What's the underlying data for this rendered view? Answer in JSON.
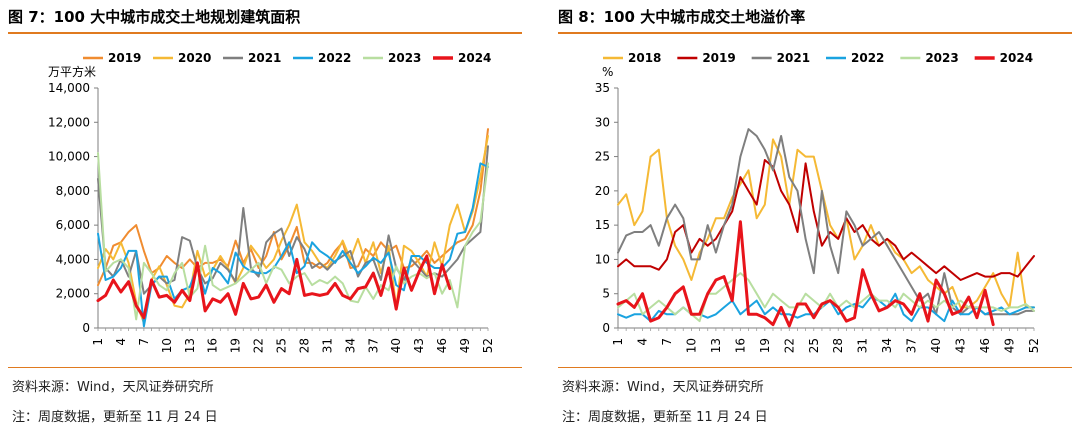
{
  "panels": [
    {
      "title": "图 7：100 大中城市成交土地规划建筑面积",
      "source": "资料来源：Wind，天风证券研究所",
      "note": "注：周度数据，更新至 11 月 24 日"
    },
    {
      "title": "图 8：100 大中城市成交土地溢价率",
      "source": "资料来源：Wind，天风证券研究所",
      "note": "注：周度数据，更新至 11 月 24 日"
    }
  ],
  "chart_data": [
    {
      "type": "line",
      "ylabel": "万平方米",
      "ylim": [
        0,
        14000
      ],
      "yticks": [
        0,
        2000,
        4000,
        6000,
        8000,
        10000,
        12000,
        14000
      ],
      "ytick_labels": [
        "0",
        "2,000",
        "4,000",
        "6,000",
        "8,000",
        "10,000",
        "12,000",
        "14,000"
      ],
      "xlim": [
        1,
        52
      ],
      "xticks": [
        1,
        4,
        7,
        10,
        13,
        16,
        19,
        22,
        25,
        28,
        31,
        34,
        37,
        40,
        43,
        46,
        49,
        52
      ],
      "grid": false,
      "legend": "top",
      "series": [
        {
          "name": "2019",
          "color": "#f08c30",
          "width": 2,
          "values": [
            2500,
            3500,
            4800,
            5000,
            5600,
            6000,
            4500,
            3200,
            3500,
            4200,
            3800,
            3500,
            4000,
            3500,
            3800,
            3800,
            4000,
            3600,
            5100,
            3800,
            4600,
            3500,
            4200,
            5600,
            4000,
            4800,
            5900,
            3800,
            3800,
            3500,
            3800,
            4500,
            5000,
            3500,
            3600,
            4600,
            4200,
            5000,
            4500,
            4800,
            3500,
            3600,
            4000,
            4500,
            3800,
            4200,
            4600,
            5000,
            5200,
            6000,
            8000,
            11600
          ]
        },
        {
          "name": "2020",
          "color": "#f5b935",
          "width": 2,
          "values": [
            3500,
            4600,
            4000,
            5000,
            3800,
            1500,
            300,
            2800,
            3600,
            2500,
            1300,
            1200,
            2000,
            4500,
            3000,
            3400,
            4200,
            3500,
            2600,
            3500,
            4800,
            4200,
            3500,
            4000,
            5100,
            6000,
            7200,
            5000,
            4500,
            3800,
            3500,
            4200,
            5100,
            4000,
            5200,
            3800,
            5000,
            3200,
            4800,
            1200,
            4800,
            4500,
            3800,
            3000,
            5000,
            3600,
            6000,
            7200,
            5600,
            6800,
            8800,
            11200
          ]
        },
        {
          "name": "2021",
          "color": "#7f7f7f",
          "width": 2,
          "values": [
            8700,
            3500,
            3000,
            4000,
            3000,
            4500,
            2000,
            2500,
            3000,
            2600,
            2800,
            5300,
            5100,
            3500,
            2600,
            2900,
            3800,
            3400,
            2700,
            7000,
            3500,
            3000,
            5000,
            5500,
            5800,
            4200,
            5300,
            4600,
            3500,
            3800,
            3400,
            3900,
            4200,
            4500,
            3000,
            3800,
            4000,
            2800,
            5400,
            3500,
            2800,
            4000,
            3500,
            3000,
            3200,
            3000,
            3500,
            4000,
            4800,
            5200,
            5600,
            10600
          ]
        },
        {
          "name": "2022",
          "color": "#1aa3e0",
          "width": 2,
          "values": [
            5500,
            2800,
            3000,
            3500,
            4500,
            4500,
            100,
            2500,
            3000,
            3000,
            1700,
            2200,
            2400,
            3600,
            2000,
            3500,
            3200,
            2600,
            4400,
            3600,
            3300,
            3200,
            3200,
            3500,
            4200,
            5000,
            3200,
            3600,
            5000,
            4500,
            4200,
            3800,
            4500,
            3800,
            3200,
            3600,
            4100,
            3800,
            4400,
            2500,
            2200,
            4200,
            4200,
            3800,
            3500,
            3500,
            4000,
            5500,
            5600,
            7000,
            9600,
            9400
          ]
        },
        {
          "name": "2023",
          "color": "#b8dea0",
          "width": 2,
          "values": [
            10200,
            3300,
            3800,
            4000,
            3500,
            500,
            3800,
            3200,
            2500,
            2200,
            3200,
            3800,
            1800,
            2300,
            4800,
            2500,
            2200,
            2400,
            2600,
            3000,
            3400,
            3800,
            2600,
            3600,
            3400,
            2600,
            3000,
            3200,
            2500,
            2800,
            2600,
            3000,
            2600,
            1600,
            1500,
            2400,
            1700,
            2500,
            2200,
            3600,
            2600,
            3000,
            3200,
            2900,
            3200,
            2000,
            2800,
            1200,
            4800,
            5600,
            6200,
            9600
          ]
        },
        {
          "name": "2024",
          "color": "#e8141b",
          "width": 3,
          "values": [
            1600,
            1900,
            2800,
            2100,
            2700,
            1300,
            600,
            2800,
            1800,
            1900,
            1500,
            2200,
            1600,
            3800,
            1000,
            1700,
            1500,
            2000,
            800,
            2600,
            1700,
            1800,
            2500,
            1500,
            2300,
            2000,
            4000,
            1900,
            2000,
            1900,
            2000,
            2600,
            1900,
            1700,
            2300,
            2400,
            3200,
            1900,
            3500,
            1100,
            3500,
            2200,
            3300,
            4200,
            2000,
            3700,
            2300
          ]
        }
      ]
    },
    {
      "type": "line",
      "ylabel": "%",
      "ylim": [
        0,
        35
      ],
      "yticks": [
        0,
        5,
        10,
        15,
        20,
        25,
        30,
        35
      ],
      "ytick_labels": [
        "0",
        "5",
        "10",
        "15",
        "20",
        "25",
        "30",
        "35"
      ],
      "xlim": [
        1,
        52
      ],
      "xticks": [
        1,
        4,
        7,
        10,
        13,
        16,
        19,
        22,
        25,
        28,
        31,
        34,
        37,
        40,
        43,
        46,
        49,
        52
      ],
      "grid": false,
      "legend": "top",
      "series": [
        {
          "name": "2018",
          "color": "#f5b935",
          "width": 2,
          "values": [
            18,
            19.5,
            15,
            17,
            25,
            26,
            16,
            12,
            10,
            7,
            11,
            13,
            16,
            16,
            19,
            21,
            23,
            16,
            18,
            27.5,
            25,
            18,
            26,
            25,
            25,
            20,
            15,
            13,
            16,
            10,
            12,
            15,
            12,
            13,
            11,
            10,
            8,
            9,
            7,
            6,
            5,
            6,
            3,
            3,
            4,
            6,
            8,
            5,
            3,
            11,
            3,
            3
          ]
        },
        {
          "name": "2019",
          "color": "#c00000",
          "width": 2,
          "values": [
            9,
            10,
            9,
            9,
            9,
            8.5,
            10,
            14,
            15,
            11,
            13,
            12,
            13,
            15,
            17,
            22,
            20,
            18,
            24.5,
            23.5,
            20,
            18,
            14,
            24,
            17,
            12,
            14,
            13,
            16,
            14,
            15,
            13,
            12,
            13,
            12,
            10,
            11,
            10,
            9,
            8,
            9,
            8,
            7,
            7.5,
            8,
            7.5,
            7.5,
            8,
            8,
            7.5,
            9,
            10.5
          ]
        },
        {
          "name": "2021",
          "color": "#7f7f7f",
          "width": 2,
          "values": [
            11,
            13.5,
            14,
            14,
            15,
            12,
            16,
            18,
            16,
            10,
            10,
            15,
            11,
            15,
            18,
            25,
            29,
            28,
            26,
            23,
            28,
            22,
            20,
            13,
            8,
            20,
            12,
            8,
            17,
            15,
            12,
            13,
            14,
            12,
            10,
            8,
            6,
            4,
            5,
            2,
            8,
            3,
            2,
            3,
            3,
            2,
            2,
            2,
            2,
            2,
            2.5,
            2.5
          ]
        },
        {
          "name": "2022",
          "color": "#1aa3e0",
          "width": 2,
          "values": [
            2,
            1.5,
            2,
            2,
            1,
            2.5,
            2,
            2,
            3,
            2,
            2,
            1.5,
            2,
            3,
            4,
            2,
            3,
            4,
            2,
            3,
            2,
            2,
            1.5,
            2,
            2,
            3,
            4,
            2,
            3,
            3.5,
            3,
            4.5,
            4,
            3,
            5,
            2,
            1,
            3,
            3,
            2,
            1,
            4,
            2,
            2,
            3,
            2,
            2.5,
            3,
            2,
            2.5,
            3,
            3
          ]
        },
        {
          "name": "2023",
          "color": "#b8dea0",
          "width": 2,
          "values": [
            3,
            4,
            5,
            2,
            3,
            4,
            3,
            2,
            3,
            2,
            1,
            5,
            5,
            6,
            7,
            8,
            7,
            5,
            3,
            5,
            4,
            3,
            3,
            5,
            4,
            3,
            5,
            3,
            4,
            3,
            4,
            5,
            4,
            4,
            3,
            5,
            4,
            3,
            4,
            3,
            4,
            3,
            4,
            3,
            3,
            3,
            3,
            2.5,
            3,
            3,
            3.5,
            2.5
          ]
        },
        {
          "name": "2024",
          "color": "#e8141b",
          "width": 3,
          "values": [
            3.5,
            4,
            3,
            5,
            1,
            1.5,
            3,
            5,
            6,
            2,
            2,
            5,
            7,
            7.5,
            4,
            15.5,
            2,
            2,
            1.5,
            0.5,
            3,
            0.3,
            3.5,
            3.5,
            1.5,
            3.5,
            4,
            3,
            1,
            1.5,
            8.5,
            5,
            2.5,
            3,
            4,
            3.5,
            2,
            5,
            1,
            7,
            5,
            2,
            2.5,
            4.5,
            1.5,
            5.5,
            0.5
          ]
        }
      ]
    }
  ]
}
